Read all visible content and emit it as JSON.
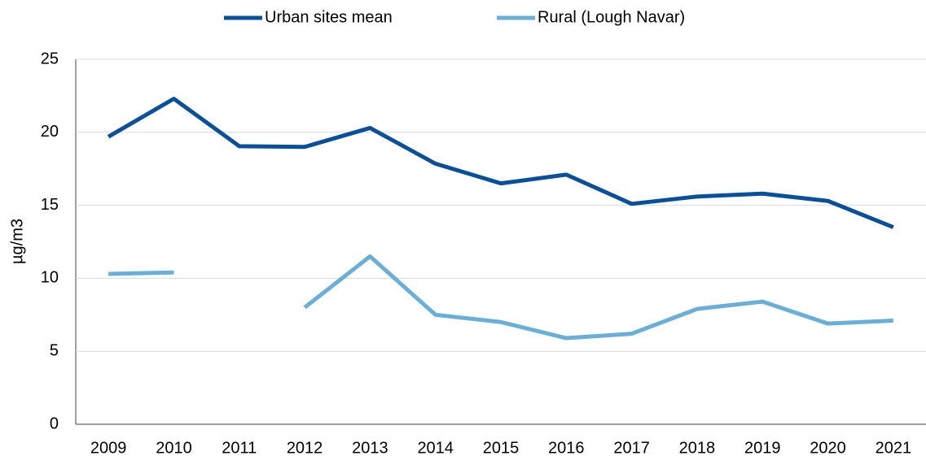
{
  "chart_data": {
    "type": "line",
    "y_label": "µg/m3",
    "categories": [
      "2009",
      "2010",
      "2011",
      "2012",
      "2013",
      "2014",
      "2015",
      "2016",
      "2017",
      "2018",
      "2019",
      "2020",
      "2021"
    ],
    "series": [
      {
        "name": "Urban sites mean",
        "color": "#0b4f96",
        "values": [
          19.7,
          22.3,
          19.05,
          19.0,
          20.3,
          17.85,
          16.5,
          17.1,
          15.1,
          15.6,
          15.8,
          15.3,
          13.5
        ]
      },
      {
        "name": "Rural (Lough Navar)",
        "color": "#6baed6",
        "values": [
          10.3,
          10.4,
          null,
          8.0,
          11.5,
          7.5,
          7.0,
          5.9,
          6.2,
          7.9,
          8.4,
          6.9,
          7.1
        ]
      }
    ],
    "ylim": [
      0,
      25
    ],
    "yticks": [
      0,
      5,
      10,
      15,
      20,
      25
    ],
    "grid": true,
    "legend": "top"
  }
}
